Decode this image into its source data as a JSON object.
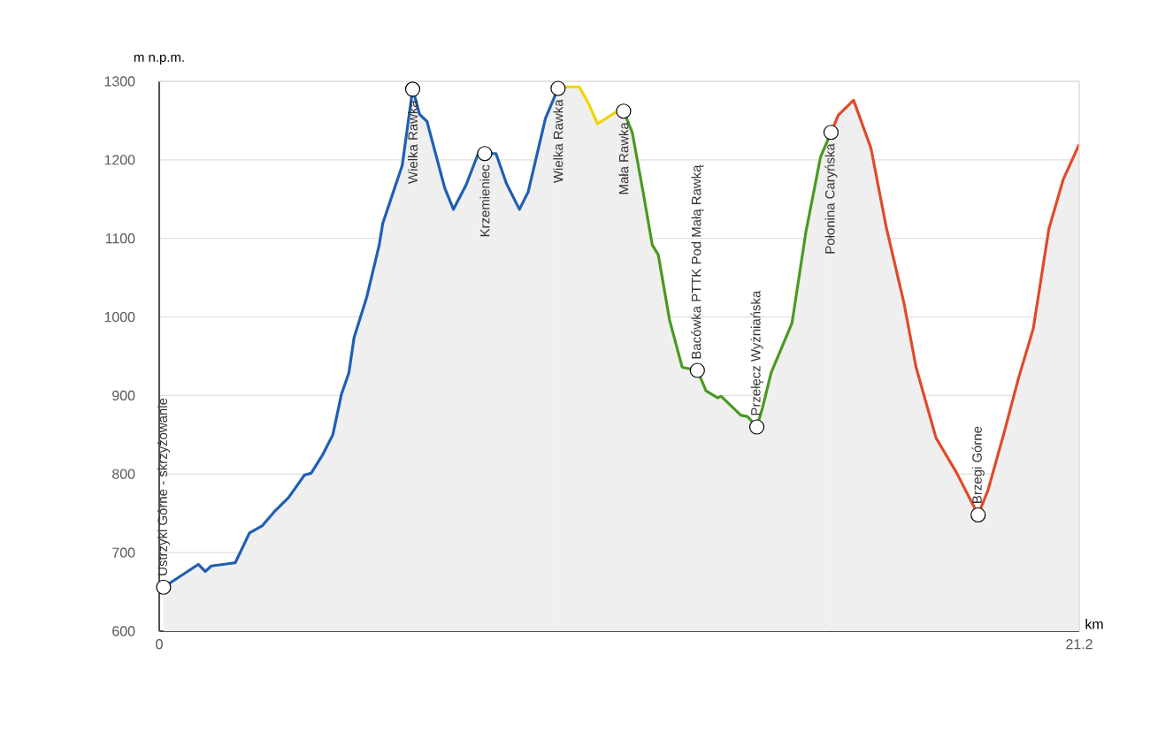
{
  "chart_data": {
    "type": "area",
    "ylabel": "m n.p.m.",
    "xlabel": "km",
    "xlim": [
      0,
      21.2
    ],
    "xticks": [
      0,
      21.2
    ],
    "ylim": [
      600,
      1300
    ],
    "yticks": [
      600,
      700,
      800,
      900,
      1000,
      1100,
      1200,
      1300
    ],
    "grid": "y",
    "marker": "none",
    "series": [
      {
        "color": "#1f5fb4",
        "x": [
          0.1,
          0.9,
          1.06,
          1.2,
          1.75,
          2.08,
          2.37,
          2.65,
          2.98,
          3.35,
          3.5,
          3.76,
          4.0,
          4.2,
          4.37,
          4.49,
          4.78,
          5.07,
          5.15,
          5.35,
          5.6,
          5.84,
          6.0,
          6.17,
          6.58,
          6.78,
          7.07,
          7.35,
          7.5,
          7.76,
          8.0,
          8.3,
          8.5,
          8.9,
          9.19
        ],
        "values": [
          656,
          685,
          676,
          683,
          687,
          725,
          734,
          752,
          770,
          799,
          801,
          824,
          850,
          902,
          929,
          974,
          1025,
          1092,
          1119,
          1152,
          1193,
          1290,
          1258,
          1249,
          1164,
          1137,
          1168,
          1208,
          1208,
          1208,
          1170,
          1137,
          1159,
          1253,
          1291
        ]
      },
      {
        "color": "#f0d400",
        "x": [
          9.19,
          9.4,
          9.68,
          9.9,
          10.1,
          10.3,
          10.5,
          10.7
        ],
        "values": [
          1291,
          1293,
          1293,
          1271,
          1246,
          1253,
          1260,
          1262
        ]
      },
      {
        "color": "#4a9a22",
        "x": [
          10.7,
          10.9,
          11.15,
          11.36,
          11.5,
          11.76,
          12.05,
          12.4,
          12.6,
          12.87,
          12.95,
          13.4,
          13.56,
          13.77,
          13.9,
          14.1,
          14.58,
          14.9,
          15.24,
          15.48
        ],
        "values": [
          1262,
          1235,
          1159,
          1092,
          1079,
          996,
          936,
          932,
          906,
          897,
          899,
          875,
          873,
          860,
          884,
          929,
          992,
          1108,
          1204,
          1235
        ]
      },
      {
        "color": "#e04a28",
        "x": [
          15.48,
          15.65,
          16.0,
          16.4,
          16.75,
          17.16,
          17.44,
          17.9,
          18.38,
          18.87,
          19.1,
          19.48,
          19.8,
          20.14,
          20.5,
          20.83,
          21.2
        ],
        "values": [
          1235,
          1257,
          1276,
          1215,
          1115,
          1018,
          936,
          846,
          801,
          748,
          780,
          855,
          922,
          985,
          1112,
          1175,
          1220
        ]
      }
    ],
    "annotations": [
      {
        "text": "Ustrzyki Górne - skrzyżowanie",
        "x": 0.1,
        "y": 656
      },
      {
        "text": "Wielka Rawka",
        "x": 5.84,
        "y": 1290
      },
      {
        "text": "Krzemieniec",
        "x": 7.5,
        "y": 1208
      },
      {
        "text": "Wielka Rawka",
        "x": 9.19,
        "y": 1291
      },
      {
        "text": "Mała Rawka",
        "x": 10.7,
        "y": 1262
      },
      {
        "text": "Bacówka PTTK Pod Małą Rawką",
        "x": 12.4,
        "y": 932
      },
      {
        "text": "Przełęcz Wyżniańska",
        "x": 13.77,
        "y": 860
      },
      {
        "text": "Połonina Caryńska",
        "x": 15.48,
        "y": 1235
      },
      {
        "text": "Brzegi Górne",
        "x": 18.87,
        "y": 748
      }
    ]
  }
}
